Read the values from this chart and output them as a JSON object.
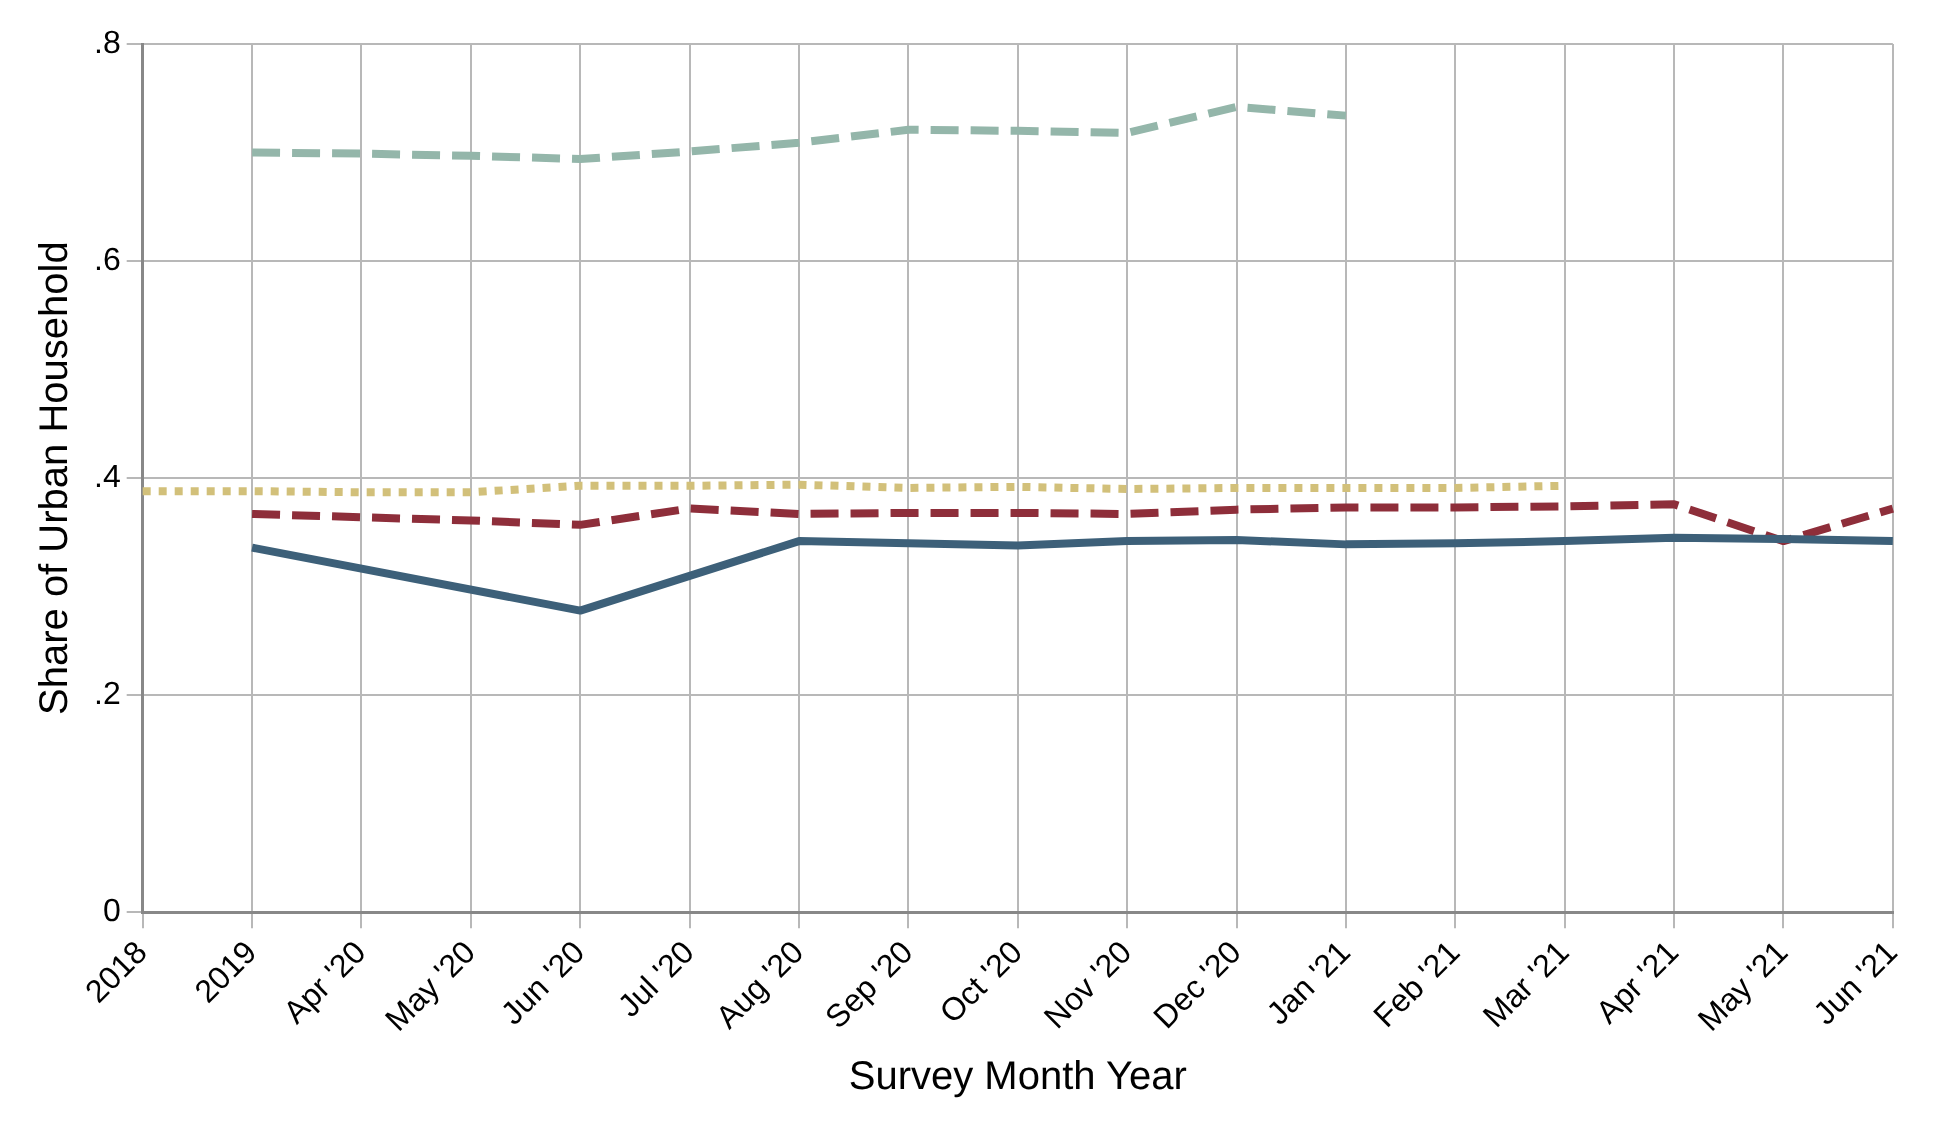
{
  "chart_data": {
    "type": "line",
    "xlabel": "Survey Month Year",
    "ylabel": "Share of Urban Household",
    "categories": [
      "2018",
      "2019",
      "Apr '20",
      "May '20",
      "Jun '20",
      "Jul '20",
      "Aug '20",
      "Sep '20",
      "Oct '20",
      "Nov '20",
      "Dec '20",
      "Jan '21",
      "Feb '21",
      "Mar '21",
      "Apr '21",
      "May '21",
      "Jun '21"
    ],
    "series": [
      {
        "color": "#3d6079",
        "line_style": "solid",
        "values": [
          null,
          0.336,
          null,
          null,
          0.278,
          null,
          0.342,
          0.34,
          0.338,
          0.342,
          0.343,
          0.339,
          0.34,
          0.342,
          0.345,
          0.344,
          0.342
        ]
      },
      {
        "color": "#8e2e3a",
        "line_style": "dashed",
        "values": [
          null,
          0.367,
          0.364,
          0.361,
          0.357,
          0.372,
          0.367,
          0.368,
          0.368,
          0.367,
          0.371,
          0.373,
          0.373,
          0.374,
          0.376,
          0.342,
          0.372
        ]
      },
      {
        "color": "#d2c07a",
        "line_style": "dotted",
        "values": [
          0.388,
          0.388,
          0.387,
          0.387,
          0.393,
          0.393,
          0.394,
          0.391,
          0.392,
          0.39,
          0.391,
          0.391,
          0.391,
          0.393,
          null,
          null,
          null
        ]
      },
      {
        "color": "#94b6aa",
        "line_style": "dashed",
        "values": [
          null,
          0.7,
          0.699,
          0.697,
          0.694,
          0.701,
          0.709,
          0.721,
          0.72,
          0.718,
          0.742,
          0.734,
          null,
          null,
          null,
          null,
          null
        ]
      }
    ],
    "ylim": [
      0,
      0.8
    ],
    "yticks": [
      0,
      {
        "value": 0.2,
        "label": ".2"
      },
      {
        "value": 0.4,
        "label": ".4"
      },
      {
        "value": 0.6,
        "label": ".6"
      },
      {
        "value": 0.8,
        "label": ".8"
      }
    ],
    "grid": true,
    "legend": false,
    "marker": "none"
  }
}
